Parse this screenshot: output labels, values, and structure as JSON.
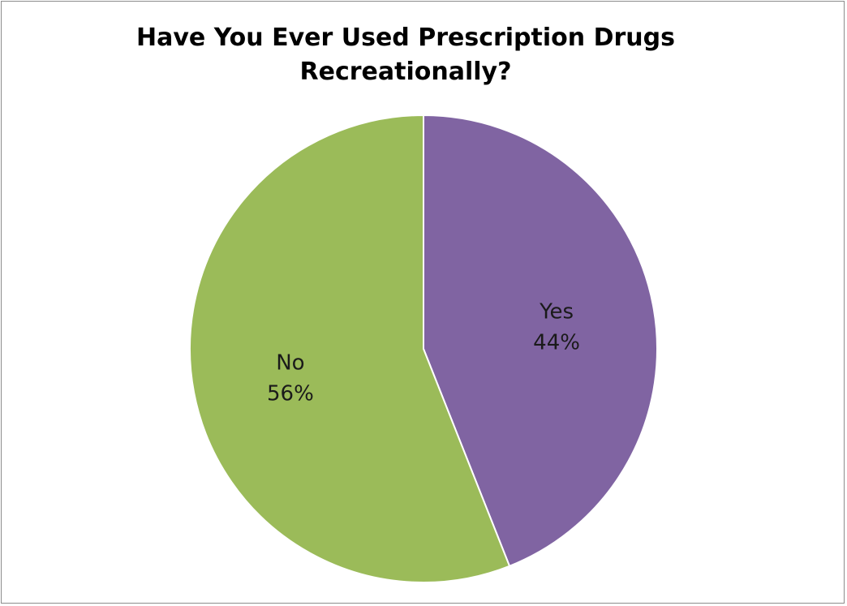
{
  "chart_data": {
    "type": "pie",
    "title_lines": [
      "Have You Ever Used Prescription Drugs",
      "Recreationally?"
    ],
    "slices": [
      {
        "label": "Yes",
        "value": 44,
        "value_label": "44%",
        "color": "#8064a2"
      },
      {
        "label": "No",
        "value": 56,
        "value_label": "56%",
        "color": "#9bbb59"
      }
    ],
    "start_angle_deg": 0,
    "direction": "clockwise",
    "legend": "none",
    "data_labels": "category and percentage inside slices"
  }
}
